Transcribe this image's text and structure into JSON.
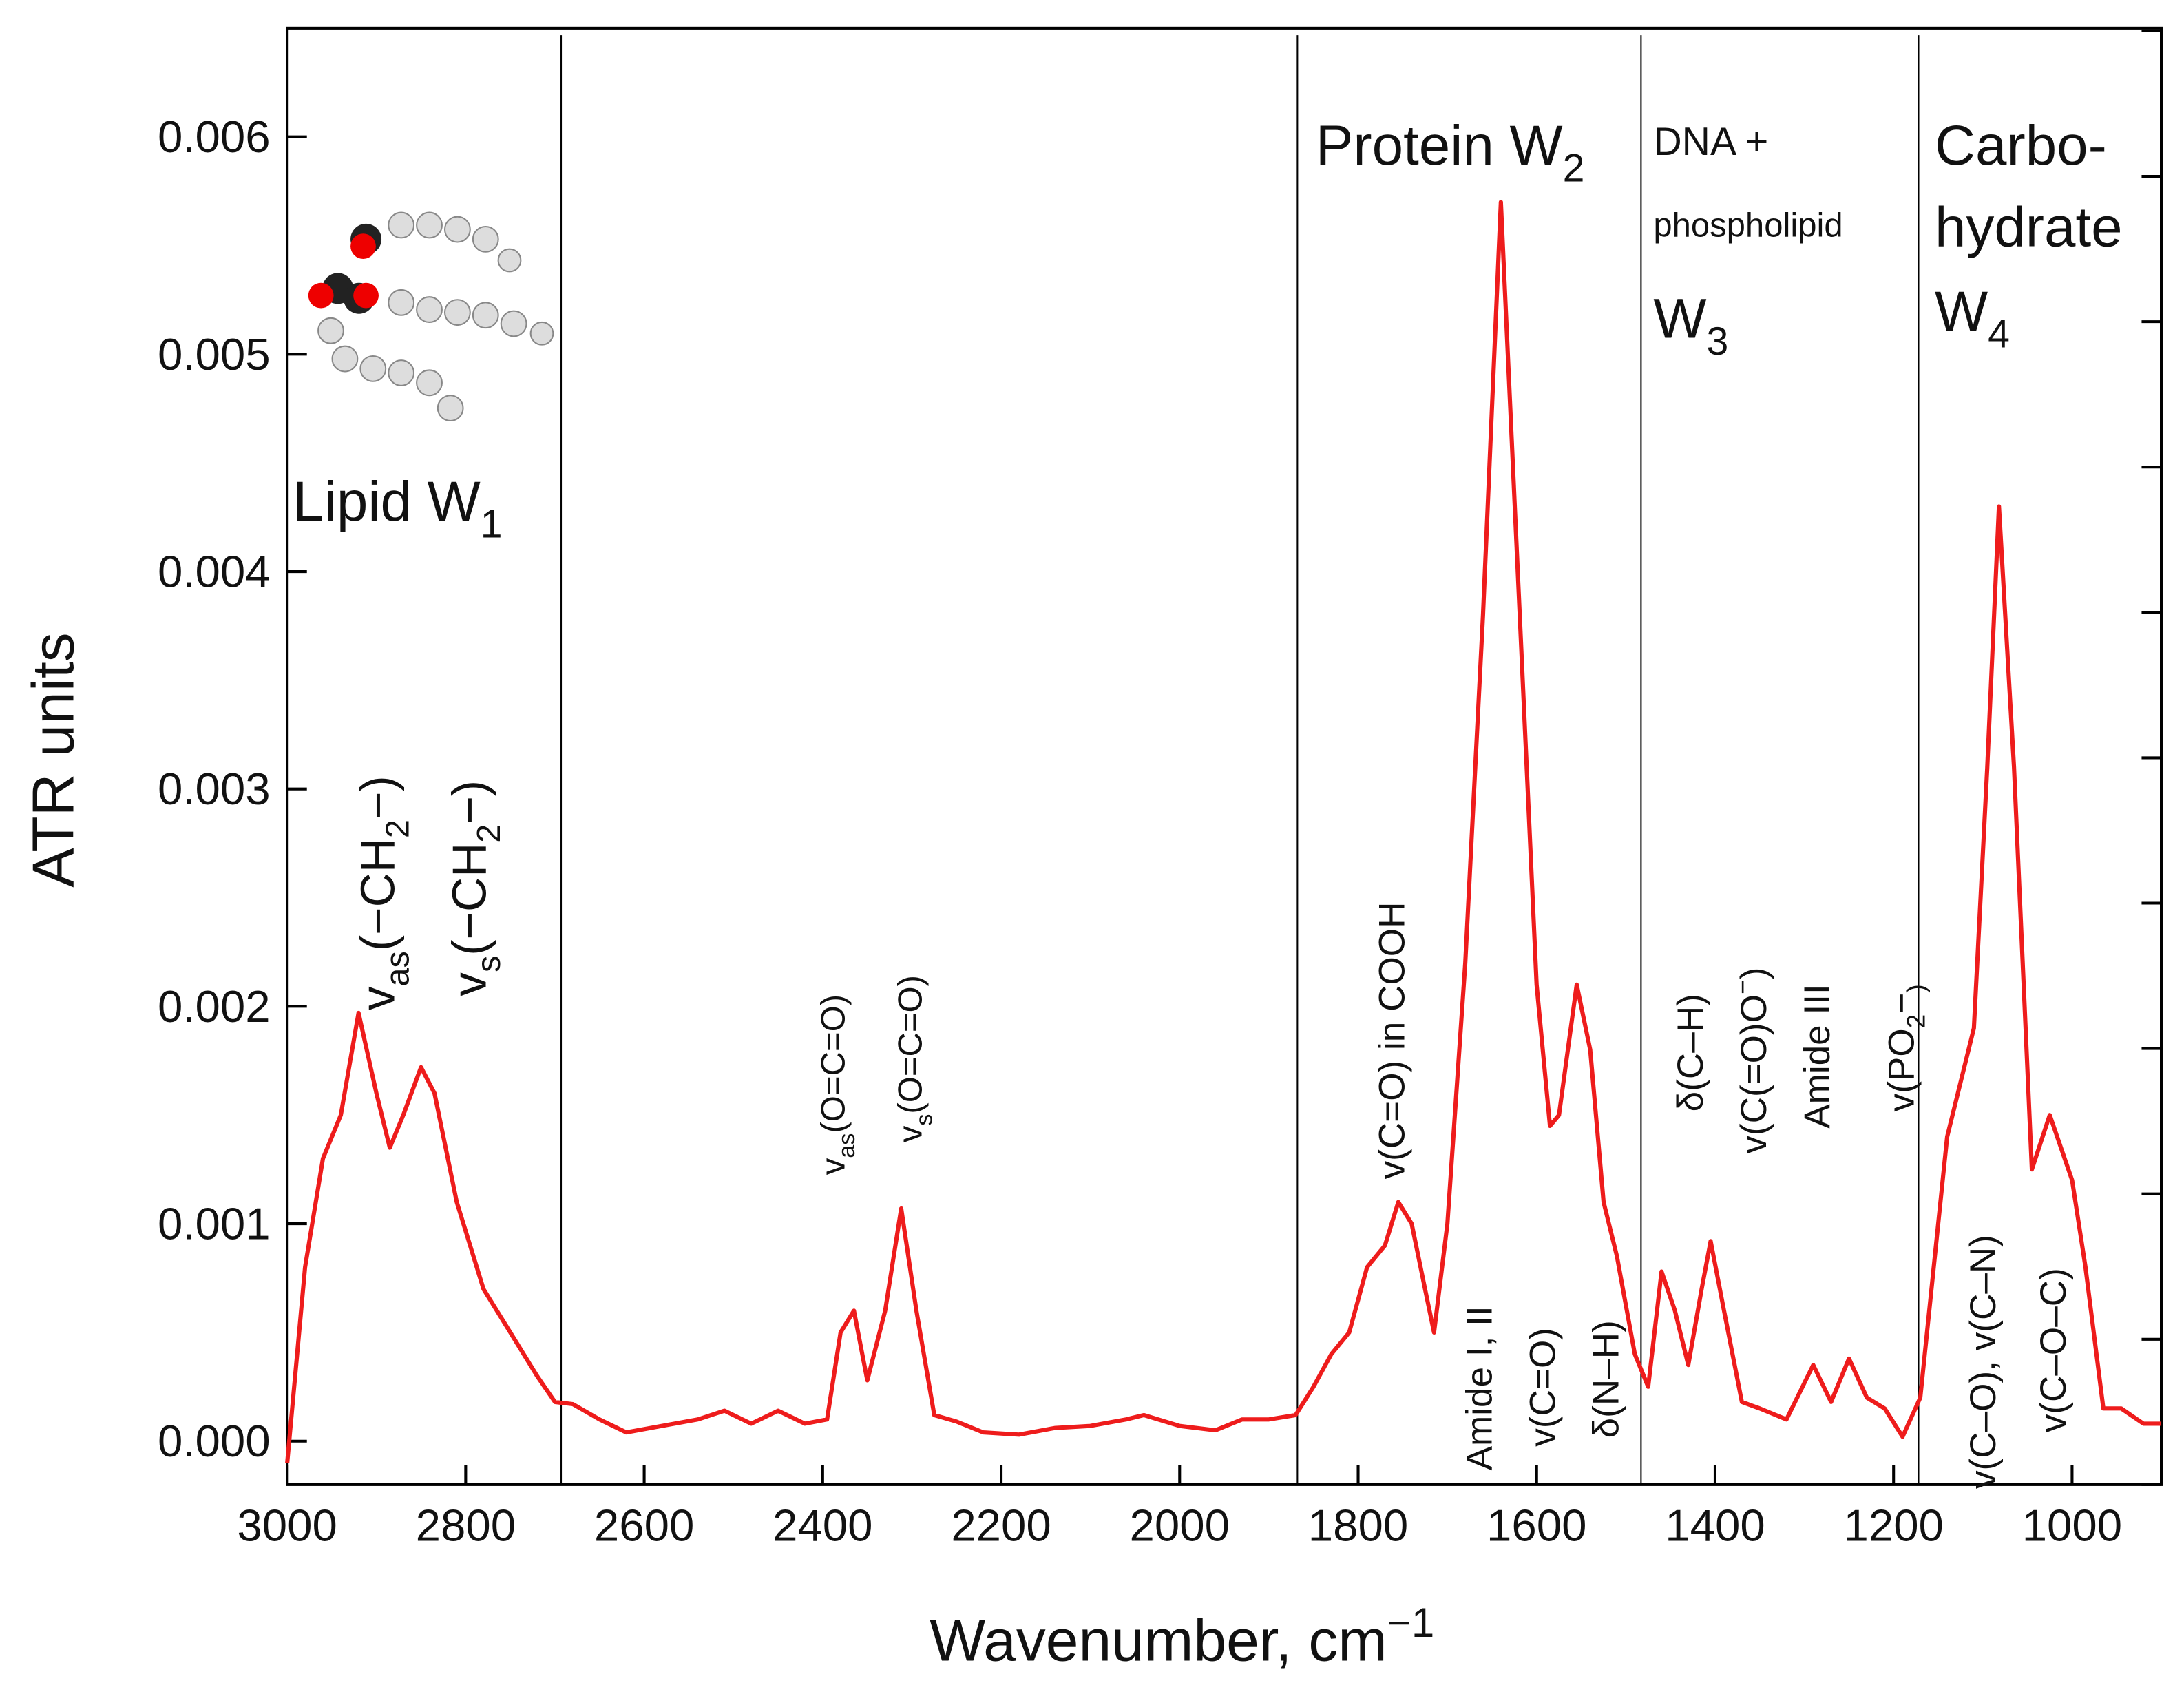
{
  "chart_data": {
    "type": "line",
    "xlabel": [
      "Wavenumber, cm",
      "−1"
    ],
    "ylabel": "ATR units",
    "xlim": [
      3000,
      900
    ],
    "ylim": [
      -0.0002,
      0.0065
    ],
    "xticks": [
      3000,
      2800,
      2600,
      2400,
      2200,
      2000,
      1800,
      1600,
      1400,
      1200,
      1000
    ],
    "yticks": [
      {
        "value": 0,
        "label": "0.000"
      },
      {
        "value": 0.001,
        "label": "0.001"
      },
      {
        "value": 0.002,
        "label": "0.002"
      },
      {
        "value": 0.003,
        "label": "0.003"
      },
      {
        "value": 0.004,
        "label": "0.004"
      },
      {
        "value": 0.005,
        "label": "0.005"
      },
      {
        "value": 0.006,
        "label": "0.006"
      }
    ],
    "color": "#ee1c1c",
    "dividers": [
      2693,
      1868,
      1483,
      1172
    ],
    "x": [
      3000,
      2980,
      2960,
      2940,
      2920,
      2900,
      2885,
      2870,
      2850,
      2835,
      2810,
      2780,
      2750,
      2720,
      2700,
      2680,
      2650,
      2620,
      2580,
      2540,
      2510,
      2480,
      2450,
      2420,
      2395,
      2380,
      2365,
      2350,
      2330,
      2312,
      2295,
      2275,
      2250,
      2220,
      2180,
      2140,
      2100,
      2060,
      2040,
      2000,
      1960,
      1930,
      1900,
      1870,
      1850,
      1830,
      1810,
      1790,
      1770,
      1755,
      1740,
      1725,
      1715,
      1700,
      1680,
      1660,
      1640,
      1620,
      1600,
      1585,
      1575,
      1555,
      1540,
      1525,
      1510,
      1490,
      1475,
      1460,
      1445,
      1430,
      1415,
      1405,
      1390,
      1370,
      1350,
      1320,
      1290,
      1270,
      1250,
      1230,
      1210,
      1190,
      1170,
      1140,
      1110,
      1095,
      1082,
      1065,
      1045,
      1025,
      1000,
      985,
      965,
      945,
      920,
      900
    ],
    "values": [
      -0.0001,
      0.0008,
      0.0013,
      0.0015,
      0.00197,
      0.0016,
      0.00135,
      0.0015,
      0.00172,
      0.0016,
      0.0011,
      0.0007,
      0.0005,
      0.0003,
      0.00018,
      0.00017,
      0.0001,
      4e-05,
      7e-05,
      0.0001,
      0.00014,
      8e-05,
      0.00014,
      8e-05,
      0.0001,
      0.0005,
      0.0006,
      0.00028,
      0.0006,
      0.00107,
      0.0006,
      0.00012,
      9e-05,
      4e-05,
      3e-05,
      6e-05,
      7e-05,
      0.0001,
      0.00012,
      7e-05,
      5e-05,
      0.0001,
      0.0001,
      0.00012,
      0.00025,
      0.0004,
      0.0005,
      0.0008,
      0.0009,
      0.0011,
      0.001,
      0.0007,
      0.0005,
      0.001,
      0.0022,
      0.0038,
      0.0057,
      0.0039,
      0.0021,
      0.00145,
      0.0015,
      0.0021,
      0.0018,
      0.0011,
      0.00085,
      0.0004,
      0.00025,
      0.00078,
      0.0006,
      0.00035,
      0.0007,
      0.00092,
      0.0006,
      0.00018,
      0.00015,
      0.0001,
      0.00035,
      0.00018,
      0.00038,
      0.0002,
      0.00015,
      2e-05,
      0.0002,
      0.0014,
      0.0019,
      0.0031,
      0.0043,
      0.0031,
      0.00125,
      0.0015,
      0.0012,
      0.0008,
      0.00015,
      0.00015,
      8e-05,
      8e-05
    ],
    "regions": [
      [
        [
          "Lipid W",
          "1"
        ]
      ],
      [
        [
          "Protein W",
          "2"
        ]
      ],
      [
        [
          "DNA +"
        ],
        [
          "phospholipid"
        ],
        [
          "W",
          "3"
        ]
      ],
      [
        [
          "Carbo-"
        ],
        [
          "hydrate"
        ],
        [
          "W",
          "4"
        ]
      ]
    ],
    "annotations": [
      [
        "v",
        "as",
        "(−CH",
        "2",
        "−)"
      ],
      [
        "v",
        "s",
        "(−CH",
        "2",
        "−)"
      ],
      [
        "v",
        "as",
        "(O=C=O)"
      ],
      [
        "v",
        "s",
        "(O=C=O)"
      ],
      [
        "v(C=O) in COOH"
      ],
      [
        "Amide I, II"
      ],
      [
        "v(C=O)"
      ],
      [
        "δ(N–H)"
      ],
      [
        "δ(C–H)"
      ],
      [
        "v(C(=O)O",
        "−",
        ")"
      ],
      [
        "Amide III"
      ],
      [
        "v(PO",
        "2",
        "−",
        ")"
      ],
      [
        "v(C–O), v(C–N)"
      ],
      [
        "v(C–O–C)"
      ]
    ]
  }
}
